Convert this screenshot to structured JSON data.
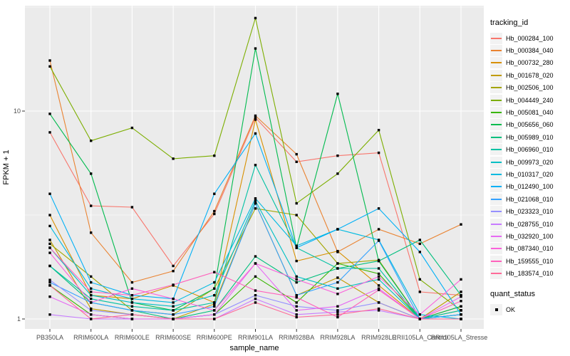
{
  "figure": {
    "y_axis": {
      "label": "FPKM + 1"
    },
    "x_axis": {
      "label": "sample_name"
    },
    "legend": {
      "tracking_title": "tracking_id",
      "quant_title": "quant_status",
      "quant_items": [
        {
          "label": "OK"
        }
      ]
    },
    "colors": {
      "panel_bg": "#EBEBEB",
      "gridline": "#FFFFFF",
      "tick_label": "#4D4D4D",
      "axis_title": "#000000",
      "point": "#000000",
      "legend_key_bg": "#F2F2F2"
    }
  },
  "chart_data": {
    "type": "line",
    "title": "",
    "xlabel": "sample_name",
    "ylabel": "FPKM + 1",
    "y_scale": "log10",
    "ylim": [
      0.9,
      33
    ],
    "y_ticks": [
      1,
      10
    ],
    "y_minor_ticks": [
      3.162,
      31.62
    ],
    "grid": true,
    "legend_position": "right",
    "legend_title": "tracking_id",
    "point_legend": {
      "title": "quant_status",
      "items": [
        "OK"
      ]
    },
    "categories": [
      "PB350LA",
      "RRIM600LA",
      "RRIM600LE",
      "RRIM600SE",
      "RRIM600PE",
      "RRIM901LA",
      "RRIM928BA",
      "RRIM928LA",
      "RRIM928LE",
      "RRII105LA_Control",
      "RRII105LA_Stressed"
    ],
    "series": [
      {
        "name": "Hb_000284_100",
        "color": "#F8766D",
        "values": [
          7.9,
          3.5,
          3.45,
          1.8,
          3.2,
          9.3,
          5.7,
          6.1,
          6.3,
          1.35,
          1.3
        ]
      },
      {
        "name": "Hb_000384_040",
        "color": "#EA8331",
        "values": [
          17.5,
          2.6,
          1.5,
          1.7,
          3.3,
          9.5,
          6.2,
          2.1,
          2.7,
          2.3,
          2.85
        ]
      },
      {
        "name": "Hb_000732_280",
        "color": "#D89000",
        "values": [
          3.16,
          1.3,
          1.25,
          1.45,
          1.2,
          9.1,
          1.9,
          2.12,
          1.45,
          1.0,
          1.15
        ]
      },
      {
        "name": "Hb_001678_020",
        "color": "#C09B00",
        "values": [
          2.4,
          1.12,
          1.05,
          1.0,
          1.18,
          3.6,
          1.3,
          1.58,
          1.2,
          1.0,
          1.35
        ]
      },
      {
        "name": "Hb_002506_100",
        "color": "#A3A500",
        "values": [
          2.3,
          1.6,
          1.1,
          1.05,
          1.4,
          3.4,
          3.16,
          1.85,
          1.92,
          1.0,
          1.1
        ]
      },
      {
        "name": "Hb_004449_240",
        "color": "#7CAE00",
        "values": [
          16.4,
          7.2,
          8.3,
          5.9,
          6.1,
          28.0,
          3.6,
          5.0,
          8.1,
          1.55,
          1.1
        ]
      },
      {
        "name": "Hb_005081_040",
        "color": "#39B600",
        "values": [
          1.45,
          1.05,
          1.0,
          1.0,
          1.05,
          1.6,
          1.2,
          1.85,
          1.65,
          1.0,
          1.05
        ]
      },
      {
        "name": "Hb_005656_060",
        "color": "#00BB4E",
        "values": [
          9.7,
          5.0,
          1.2,
          1.1,
          1.4,
          20.0,
          2.2,
          12.1,
          1.9,
          1.0,
          1.15
        ]
      },
      {
        "name": "Hb_005989_010",
        "color": "#00BF7D",
        "values": [
          1.8,
          1.2,
          1.1,
          1.0,
          1.1,
          2.0,
          1.5,
          1.75,
          1.9,
          2.4,
          1.3
        ]
      },
      {
        "name": "Hb_006960_010",
        "color": "#00C1A3",
        "values": [
          1.8,
          1.25,
          1.15,
          1.1,
          1.2,
          5.5,
          2.2,
          1.75,
          1.75,
          1.0,
          1.1
        ]
      },
      {
        "name": "Hb_009973_020",
        "color": "#00BFC4",
        "values": [
          2.2,
          1.3,
          1.2,
          1.15,
          1.3,
          3.7,
          1.6,
          1.4,
          1.55,
          1.0,
          1.05
        ]
      },
      {
        "name": "Hb_010317_020",
        "color": "#00BAE0",
        "values": [
          2.8,
          1.4,
          1.25,
          1.2,
          1.5,
          3.8,
          2.25,
          2.7,
          2.4,
          1.05,
          1.0
        ]
      },
      {
        "name": "Hb_012490_100",
        "color": "#00B0F6",
        "values": [
          4.0,
          1.5,
          1.3,
          1.25,
          4.0,
          7.8,
          2.2,
          2.7,
          3.4,
          2.1,
          1.05
        ]
      },
      {
        "name": "Hb_021068_010",
        "color": "#35A2FF",
        "values": [
          1.5,
          1.2,
          1.1,
          1.05,
          1.15,
          3.6,
          1.3,
          1.5,
          2.38,
          1.0,
          1.05
        ]
      },
      {
        "name": "Hb_023323_010",
        "color": "#9590FF",
        "values": [
          1.54,
          1.1,
          1.05,
          1.0,
          1.05,
          1.3,
          1.15,
          1.1,
          1.2,
          1.0,
          1.0
        ]
      },
      {
        "name": "Hb_028755_010",
        "color": "#C77CFF",
        "values": [
          1.05,
          1.0,
          1.0,
          1.0,
          1.0,
          1.25,
          1.05,
          1.08,
          1.1,
          1.0,
          1.0
        ]
      },
      {
        "name": "Hb_032920_100",
        "color": "#E76BF3",
        "values": [
          1.28,
          1.05,
          1.0,
          1.0,
          1.05,
          1.85,
          1.1,
          1.15,
          1.4,
          1.0,
          1.28
        ]
      },
      {
        "name": "Hb_087340_010",
        "color": "#FA62DB",
        "values": [
          2.08,
          1.2,
          1.4,
          1.25,
          1.1,
          1.85,
          1.55,
          1.32,
          1.6,
          1.05,
          1.55
        ]
      },
      {
        "name": "Hb_159555_010",
        "color": "#FF62BC",
        "values": [
          2.2,
          1.35,
          1.3,
          1.46,
          1.68,
          1.37,
          1.27,
          1.02,
          1.38,
          1.0,
          1.22
        ]
      },
      {
        "name": "Hb_183574_010",
        "color": "#FF6A98",
        "values": [
          1.45,
          1.0,
          1.05,
          1.0,
          1.0,
          1.2,
          1.02,
          1.05,
          1.12,
          1.0,
          1.0
        ]
      }
    ]
  }
}
